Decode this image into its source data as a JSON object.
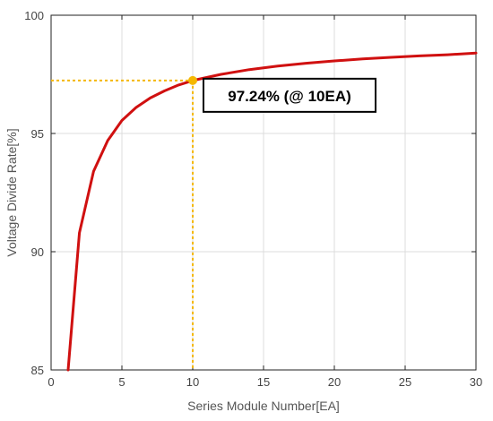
{
  "chart_data": {
    "type": "line",
    "title": "",
    "xlabel": "Series Module Number[EA]",
    "ylabel": "Voltage Divide Rate[%]",
    "xlim": [
      0,
      30
    ],
    "ylim": [
      85,
      100
    ],
    "xticks": [
      0,
      5,
      10,
      15,
      20,
      25,
      30
    ],
    "yticks": [
      85,
      90,
      95,
      100
    ],
    "grid": true,
    "series": [
      {
        "x": [
          1.2,
          2,
          3,
          4,
          5,
          6,
          7,
          8,
          9,
          10,
          12,
          14,
          16,
          18,
          20,
          22,
          24,
          26,
          28,
          30
        ],
        "y": [
          85.0,
          90.8,
          93.4,
          94.7,
          95.55,
          96.1,
          96.5,
          96.8,
          97.05,
          97.24,
          97.5,
          97.7,
          97.85,
          97.97,
          98.07,
          98.15,
          98.22,
          98.28,
          98.33,
          98.4
        ],
        "color": "#d01010"
      }
    ],
    "highlight": {
      "x": 10,
      "y": 97.24,
      "label": "97.24% (@ 10EA)",
      "color": "#f5b800"
    }
  }
}
